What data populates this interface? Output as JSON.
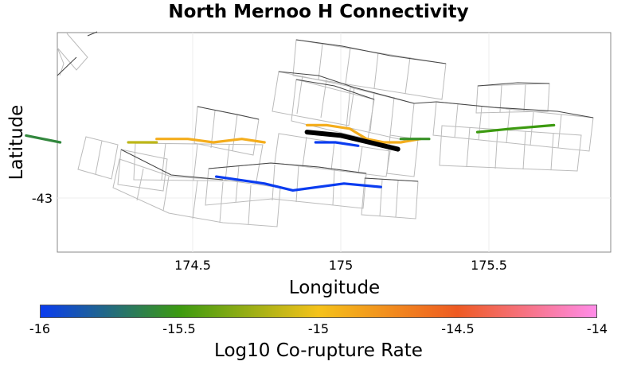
{
  "title": "North Mernoo H Connectivity",
  "axes": {
    "xlabel": "Longitude",
    "ylabel": "Latitude",
    "xticks": [
      "174.5",
      "175",
      "175.5"
    ],
    "yticks": [
      "-43"
    ]
  },
  "colorbar": {
    "label": "Log10 Co-rupture Rate",
    "ticks": [
      "-16",
      "-15.5",
      "-15",
      "-14.5",
      "-14"
    ],
    "range": [
      -16,
      -14
    ],
    "stops": [
      "#0a3cf0",
      "#3c9a10",
      "#f5c21a",
      "#ee5a22",
      "#ff8ce8"
    ]
  },
  "colors": {
    "selected": "#000000",
    "grid_outline": "#bbbbbb",
    "fault_trace": "#444444"
  },
  "chart_data": {
    "type": "map",
    "title": "North Mernoo H Connectivity",
    "xlabel": "Longitude",
    "ylabel": "Latitude",
    "xlim": [
      174.0,
      175.95
    ],
    "ylim": [
      -43.19,
      -42.55
    ],
    "selected_fault": "North Mernoo H",
    "faults": [
      {
        "id": "fault-w1",
        "lon": [
          173.89,
          174.01
        ],
        "lat": [
          -42.85,
          -42.87
        ],
        "rate": -15.6
      },
      {
        "id": "fault-w2",
        "lon": [
          174.25,
          174.35
        ],
        "lat": [
          -42.87,
          -42.87
        ],
        "rate": -15.15
      },
      {
        "id": "fault-w3",
        "lon": [
          174.35,
          174.46,
          174.55,
          174.65,
          174.73
        ],
        "lat": [
          -42.86,
          -42.86,
          -42.87,
          -42.86,
          -42.87
        ],
        "rate": -14.9
      },
      {
        "id": "fault-c1",
        "lon": [
          174.88,
          174.95,
          175.03,
          175.09,
          175.15,
          175.21,
          175.28
        ],
        "lat": [
          -42.82,
          -42.82,
          -42.83,
          -42.86,
          -42.87,
          -42.87,
          -42.86
        ],
        "rate": -14.9
      },
      {
        "id": "fault-c2",
        "lon": [
          174.91,
          174.98,
          175.06
        ],
        "lat": [
          -42.87,
          -42.87,
          -42.88
        ],
        "rate": -16.0
      },
      {
        "id": "fault-s1",
        "lon": [
          174.56,
          174.73,
          174.83,
          175.01,
          175.14
        ],
        "lat": [
          -42.97,
          -42.99,
          -43.01,
          -42.99,
          -43.0
        ],
        "rate": -16.0
      },
      {
        "id": "fault-e1",
        "lon": [
          175.21,
          175.31
        ],
        "lat": [
          -42.86,
          -42.86
        ],
        "rate": -15.55
      },
      {
        "id": "fault-e2",
        "lon": [
          175.48,
          175.6,
          175.75
        ],
        "lat": [
          -42.84,
          -42.83,
          -42.82
        ],
        "rate": -15.5
      },
      {
        "id": "north-mernoo-h",
        "lon": [
          174.88,
          175.0,
          175.1,
          175.2
        ],
        "lat": [
          -42.84,
          -42.85,
          -42.87,
          -42.89
        ],
        "rate": null
      }
    ]
  }
}
